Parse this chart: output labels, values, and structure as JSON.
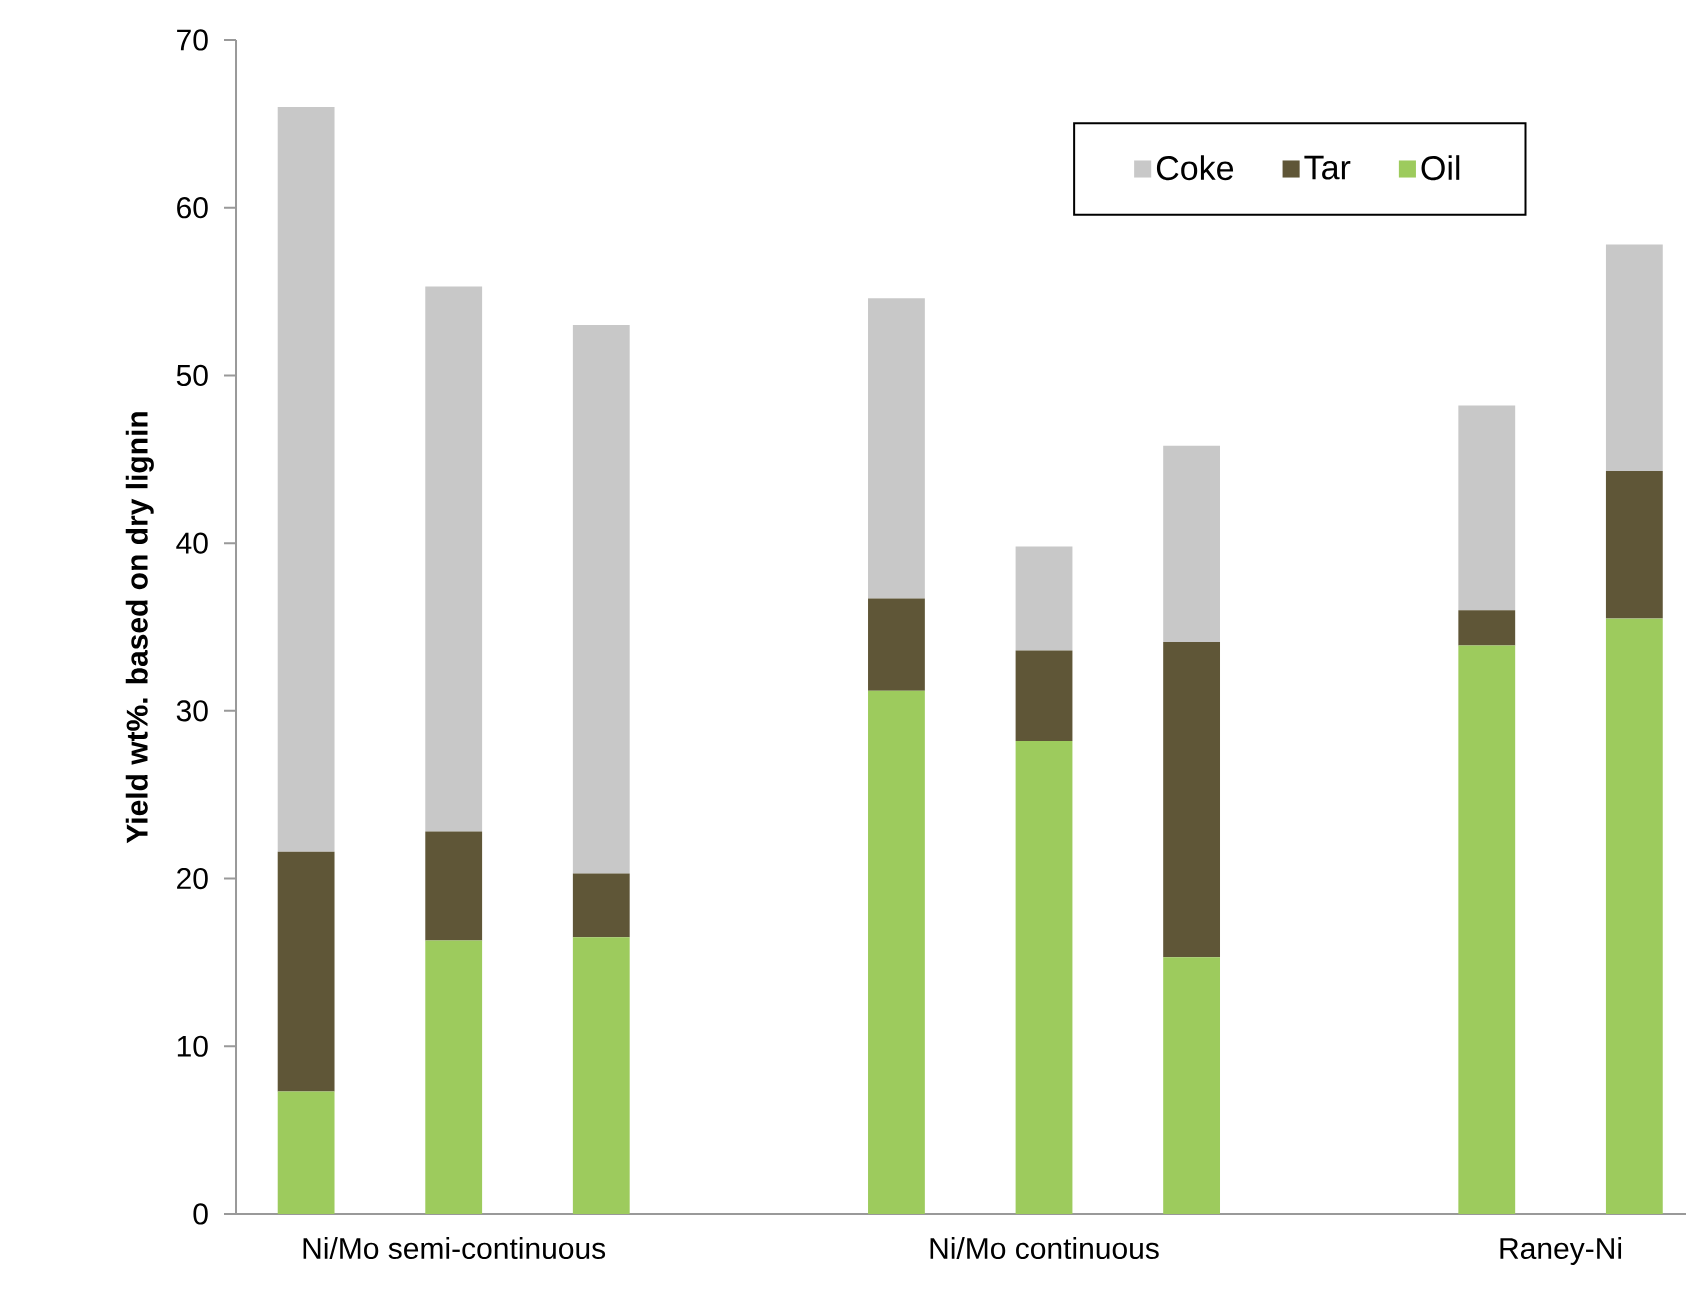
{
  "chart_data": {
    "type": "bar",
    "stacked": true,
    "ylabel": "Yield wt%. based on dry lignin",
    "categories": [
      null,
      null,
      "Ni/Mo semi-continuous",
      null,
      null,
      null,
      null,
      null,
      null,
      null,
      "Ni/Mo continuous",
      null,
      null,
      null,
      null,
      null,
      null,
      "Raney-Ni",
      null
    ],
    "series": [
      {
        "name": "Oil",
        "color": "#9dcb5d",
        "values": [
          7.3,
          null,
          16.3,
          null,
          16.5,
          null,
          null,
          null,
          31.2,
          null,
          28.2,
          null,
          15.3,
          null,
          null,
          null,
          33.9,
          null,
          35.5
        ]
      },
      {
        "name": "Tar",
        "color": "#5f5637",
        "values": [
          14.3,
          null,
          6.5,
          null,
          3.8,
          null,
          null,
          null,
          5.5,
          null,
          5.4,
          null,
          18.8,
          null,
          null,
          null,
          2.1,
          null,
          8.8
        ]
      },
      {
        "name": "Coke",
        "color": "#c8c8c8",
        "values": [
          44.4,
          null,
          32.5,
          null,
          32.7,
          null,
          null,
          null,
          17.9,
          null,
          6.2,
          null,
          11.7,
          null,
          null,
          null,
          12.2,
          null,
          13.5
        ]
      }
    ],
    "ylim": [
      0,
      70
    ],
    "yticks": [
      0,
      10,
      20,
      30,
      40,
      50,
      60,
      70
    ],
    "grid": false,
    "legend": "top right"
  }
}
